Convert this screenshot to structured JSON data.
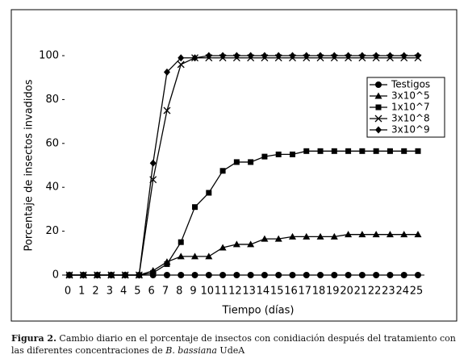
{
  "chart_data": {
    "type": "line",
    "x_label": "Tiempo (días)",
    "y_label": "Porcentaje de insectos invadidos",
    "x": [
      0,
      1,
      2,
      3,
      4,
      5,
      6,
      7,
      8,
      9,
      10,
      11,
      12,
      13,
      14,
      15,
      16,
      17,
      18,
      19,
      20,
      21,
      22,
      23,
      24,
      25
    ],
    "xlim": [
      0,
      25
    ],
    "ylim": [
      0,
      100
    ],
    "yticks": [
      0,
      20,
      40,
      60,
      80,
      100
    ],
    "legend": "upper right",
    "series": [
      {
        "name": "Testigos",
        "color": "#000000",
        "marker": "circle",
        "values": [
          0,
          0,
          0,
          0,
          0,
          0,
          0,
          0,
          0,
          0,
          0,
          0,
          0,
          0,
          0,
          0,
          0,
          0,
          0,
          0,
          0,
          0,
          0,
          0,
          0,
          0
        ]
      },
      {
        "name": "3x10^5",
        "color": "#000000",
        "marker": "triangle",
        "values": [
          0,
          0,
          0,
          0,
          0,
          0,
          2,
          6,
          8.5,
          8.5,
          8.5,
          12.5,
          14,
          14,
          16.5,
          16.5,
          17.5,
          17.5,
          17.5,
          17.5,
          18.5,
          18.5,
          18.5,
          18.5,
          18.5,
          18.5
        ]
      },
      {
        "name": "1x10^7",
        "color": "#000000",
        "marker": "square",
        "values": [
          0,
          0,
          0,
          0,
          0,
          0,
          1,
          5,
          15,
          31,
          37.5,
          47.5,
          51.5,
          51.5,
          54,
          55,
          55,
          56.5,
          56.5,
          56.5,
          56.5,
          56.5,
          56.5,
          56.5,
          56.5,
          56.5
        ]
      },
      {
        "name": "3x10^8",
        "color": "#000000",
        "marker": "x",
        "values": [
          0,
          0,
          0,
          0,
          0,
          0,
          43.5,
          75,
          96,
          99,
          99,
          99,
          99,
          99,
          99,
          99,
          99,
          99,
          99,
          99,
          99,
          99,
          99,
          99,
          99,
          99
        ]
      },
      {
        "name": "3x10^9",
        "color": "#000000",
        "marker": "diamond",
        "values": [
          0,
          0,
          0,
          0,
          0,
          0,
          51,
          92.5,
          99,
          99,
          100,
          100,
          100,
          100,
          100,
          100,
          100,
          100,
          100,
          100,
          100,
          100,
          100,
          100,
          100,
          100
        ]
      }
    ]
  },
  "caption": {
    "label": "Figura 2.",
    "text1": "Cambio diario en el porcentaje de insectos con conidiación después del tratamiento con las diferentes concentraciones de",
    "species": "B. bassiana",
    "text2": "UdeA"
  }
}
